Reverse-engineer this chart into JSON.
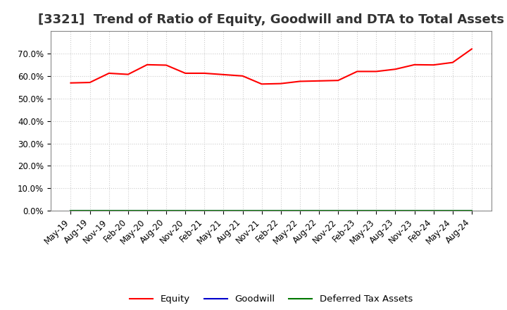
{
  "title": "[3321]  Trend of Ratio of Equity, Goodwill and DTA to Total Assets",
  "x_labels": [
    "May-19",
    "Aug-19",
    "Nov-19",
    "Feb-20",
    "May-20",
    "Aug-20",
    "Nov-20",
    "Feb-21",
    "May-21",
    "Aug-21",
    "Nov-21",
    "Feb-22",
    "May-22",
    "Aug-22",
    "Nov-22",
    "Feb-23",
    "May-23",
    "Aug-23",
    "Nov-23",
    "Feb-24",
    "May-24",
    "Aug-24"
  ],
  "equity": [
    0.569,
    0.571,
    0.612,
    0.607,
    0.65,
    0.648,
    0.612,
    0.612,
    0.606,
    0.6,
    0.564,
    0.566,
    0.576,
    0.578,
    0.58,
    0.62,
    0.62,
    0.63,
    0.65,
    0.649,
    0.66,
    0.72
  ],
  "goodwill": [
    0.0,
    0.0,
    0.0,
    0.0,
    0.0,
    0.0,
    0.0,
    0.0,
    0.0,
    0.0,
    0.0,
    0.0,
    0.0,
    0.0,
    0.0,
    0.0,
    0.0,
    0.0,
    0.0,
    0.0,
    0.0,
    0.0
  ],
  "dta": [
    0.0,
    0.0,
    0.0,
    0.0,
    0.0,
    0.0,
    0.0,
    0.0,
    0.0,
    0.0,
    0.0,
    0.0,
    0.0,
    0.0,
    0.0,
    0.0,
    0.0,
    0.0,
    0.0,
    0.0,
    0.0,
    0.0
  ],
  "equity_color": "#FF0000",
  "goodwill_color": "#0000CC",
  "dta_color": "#007700",
  "ylim": [
    0.0,
    0.8
  ],
  "yticks": [
    0.0,
    0.1,
    0.2,
    0.3,
    0.4,
    0.5,
    0.6,
    0.7
  ],
  "background_color": "#FFFFFF",
  "plot_bg_color": "#FFFFFF",
  "grid_color": "#CCCCCC",
  "title_fontsize": 13,
  "tick_fontsize": 8.5,
  "legend_labels": [
    "Equity",
    "Goodwill",
    "Deferred Tax Assets"
  ]
}
